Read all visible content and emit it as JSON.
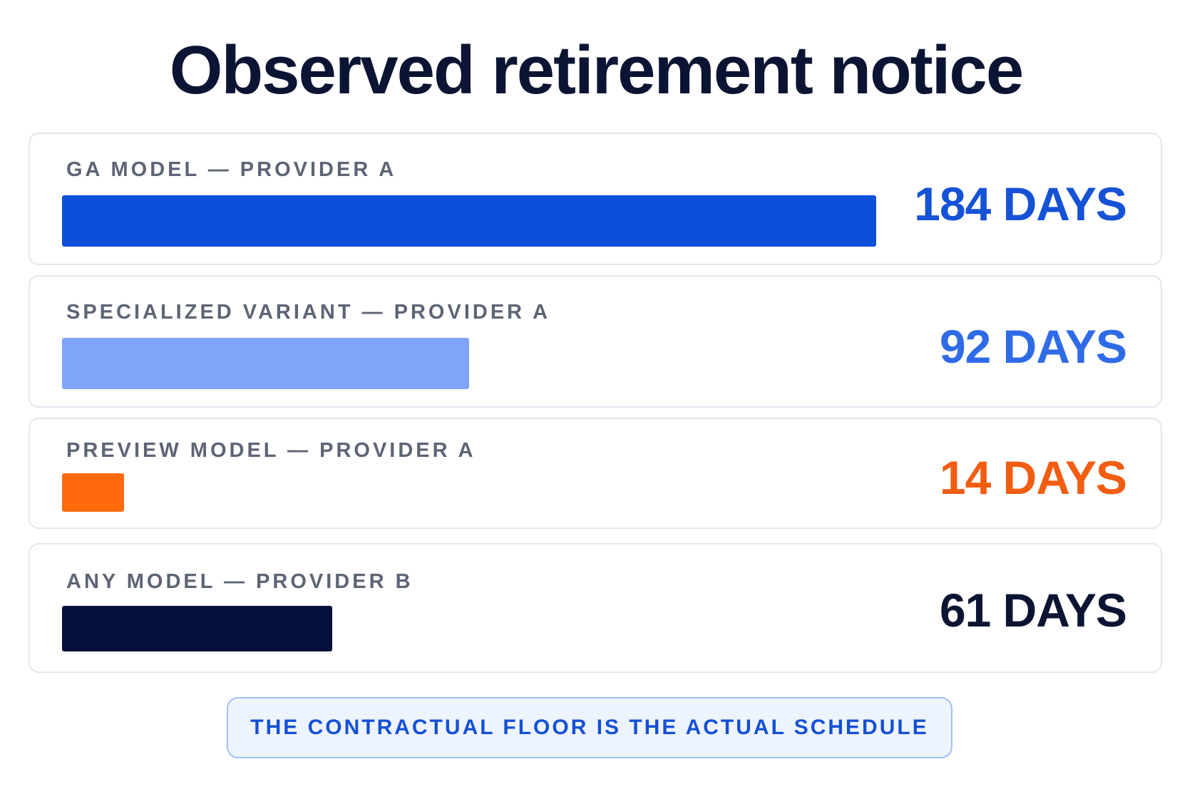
{
  "chart_data": {
    "type": "bar",
    "orientation": "horizontal",
    "title": "Observed retirement notice",
    "categories": [
      "GA MODEL — PROVIDER A",
      "SPECIALIZED VARIANT — PROVIDER A",
      "PREVIEW MODEL — PROVIDER A",
      "ANY MODEL — PROVIDER B"
    ],
    "values": [
      184,
      92,
      14,
      61
    ],
    "value_labels": [
      "184 DAYS",
      "92 DAYS",
      "14 DAYS",
      "61 DAYS"
    ],
    "bar_colors": [
      "#0d4fd9",
      "#7ea5f8",
      "#ff6a0d",
      "#04103a"
    ],
    "value_label_colors": [
      "#1552d6",
      "#2f6be6",
      "#f25d12",
      "#0b1533"
    ],
    "unit": "days",
    "xlim": [
      0,
      184
    ],
    "grid": false,
    "legend": "none"
  },
  "callout": {
    "text": "THE CONTRACTUAL FLOOR IS THE ACTUAL SCHEDULE"
  }
}
